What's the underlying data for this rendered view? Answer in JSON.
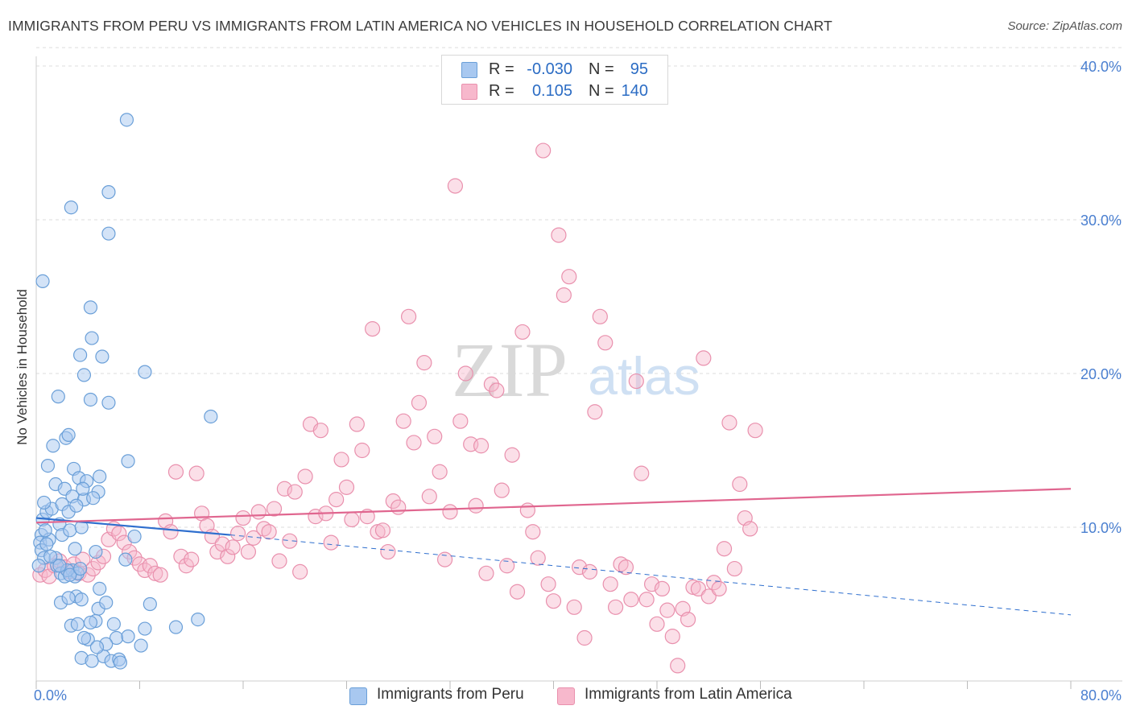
{
  "title": "IMMIGRANTS FROM PERU VS IMMIGRANTS FROM LATIN AMERICA NO VEHICLES IN HOUSEHOLD CORRELATION CHART",
  "source": "Source: ZipAtlas.com",
  "watermark": {
    "zip": "ZIP",
    "atlas": "atlas"
  },
  "colors": {
    "peru_fill": "#a8c8f0",
    "peru_stroke": "#6a9fd8",
    "peru_line": "#2f6fce",
    "latin_fill": "#f7b8cc",
    "latin_stroke": "#e990ad",
    "latin_line": "#e0668f",
    "tick_label": "#4a7fd0",
    "grid": "#dcdcdc"
  },
  "legend_top": {
    "rows": [
      {
        "r_label": "R =",
        "r_value": "-0.030",
        "n_label": "N =",
        "n_value": "95"
      },
      {
        "r_label": "R =",
        "r_value": "0.105",
        "n_label": "N =",
        "n_value": "140"
      }
    ]
  },
  "legend_bottom": {
    "items": [
      "Immigrants from Peru",
      "Immigrants from Latin America"
    ]
  },
  "chart_data": {
    "type": "scatter",
    "title": "IMMIGRANTS FROM PERU VS IMMIGRANTS FROM LATIN AMERICA NO VEHICLES IN HOUSEHOLD CORRELATION CHART",
    "xlabel": "",
    "ylabel": "No Vehicles in Household",
    "xlim": [
      0,
      80
    ],
    "ylim": [
      0,
      42
    ],
    "x_tick_labels": [
      "0.0%",
      "80.0%"
    ],
    "y_ticks": [
      10,
      20,
      30,
      40
    ],
    "y_tick_labels": [
      "10.0%",
      "20.0%",
      "30.0%",
      "40.0%"
    ],
    "grid": true,
    "legend_position": "bottom",
    "series": [
      {
        "name": "Immigrants from Peru",
        "r": -0.03,
        "n": 95,
        "trend": {
          "x": [
            0,
            15
          ],
          "y": [
            10.6,
            9.5
          ],
          "dashed_to": [
            80,
            4.3
          ]
        },
        "points": [
          [
            0.5,
            26.0
          ],
          [
            0.4,
            9.5
          ],
          [
            0.3,
            9.0
          ],
          [
            0.4,
            8.5
          ],
          [
            0.6,
            8.0
          ],
          [
            0.2,
            7.5
          ],
          [
            0.5,
            10.5
          ],
          [
            0.8,
            11.0
          ],
          [
            1.0,
            9.2
          ],
          [
            0.7,
            9.8
          ],
          [
            1.2,
            11.2
          ],
          [
            1.5,
            12.8
          ],
          [
            0.9,
            14.0
          ],
          [
            1.3,
            15.3
          ],
          [
            1.7,
            18.5
          ],
          [
            2.7,
            30.8
          ],
          [
            2.3,
            15.8
          ],
          [
            2.5,
            16.0
          ],
          [
            2.2,
            12.5
          ],
          [
            2.0,
            11.5
          ],
          [
            2.5,
            11.0
          ],
          [
            1.8,
            10.2
          ],
          [
            2.0,
            9.5
          ],
          [
            2.6,
            9.8
          ],
          [
            1.5,
            8.0
          ],
          [
            1.6,
            7.5
          ],
          [
            1.9,
            7.0
          ],
          [
            2.2,
            6.8
          ],
          [
            2.8,
            7.2
          ],
          [
            3.0,
            6.8
          ],
          [
            3.2,
            7.0
          ],
          [
            2.4,
            7.2
          ],
          [
            1.8,
            7.5
          ],
          [
            2.6,
            6.9
          ],
          [
            3.4,
            7.3
          ],
          [
            3.0,
            8.6
          ],
          [
            3.5,
            10.0
          ],
          [
            2.8,
            12.0
          ],
          [
            2.9,
            13.8
          ],
          [
            3.3,
            13.2
          ],
          [
            3.9,
            13.0
          ],
          [
            3.7,
            11.8
          ],
          [
            3.6,
            12.5
          ],
          [
            3.1,
            11.4
          ],
          [
            3.4,
            21.2
          ],
          [
            3.7,
            19.9
          ],
          [
            4.2,
            24.3
          ],
          [
            4.3,
            22.3
          ],
          [
            4.2,
            18.3
          ],
          [
            5.1,
            21.1
          ],
          [
            5.6,
            31.8
          ],
          [
            5.6,
            29.1
          ],
          [
            7.0,
            36.5
          ],
          [
            5.6,
            18.1
          ],
          [
            4.9,
            13.3
          ],
          [
            4.8,
            12.3
          ],
          [
            4.4,
            11.9
          ],
          [
            4.6,
            8.4
          ],
          [
            4.8,
            4.7
          ],
          [
            4.9,
            6.0
          ],
          [
            5.4,
            5.1
          ],
          [
            5.2,
            1.6
          ],
          [
            3.5,
            1.5
          ],
          [
            4.3,
            1.3
          ],
          [
            6.0,
            3.7
          ],
          [
            6.2,
            2.8
          ],
          [
            5.4,
            2.4
          ],
          [
            4.6,
            3.9
          ],
          [
            4.2,
            3.8
          ],
          [
            3.1,
            5.5
          ],
          [
            3.5,
            5.3
          ],
          [
            2.7,
            3.6
          ],
          [
            3.2,
            3.7
          ],
          [
            1.9,
            5.1
          ],
          [
            2.5,
            5.4
          ],
          [
            4.0,
            2.7
          ],
          [
            3.7,
            2.8
          ],
          [
            4.7,
            2.2
          ],
          [
            5.8,
            1.3
          ],
          [
            6.4,
            1.4
          ],
          [
            6.5,
            1.2
          ],
          [
            7.1,
            2.9
          ],
          [
            8.1,
            2.3
          ],
          [
            8.4,
            3.4
          ],
          [
            8.8,
            5.0
          ],
          [
            7.6,
            9.4
          ],
          [
            6.9,
            7.9
          ],
          [
            7.1,
            14.3
          ],
          [
            8.4,
            20.1
          ],
          [
            10.8,
            3.5
          ],
          [
            12.5,
            4.0
          ],
          [
            13.5,
            17.2
          ],
          [
            0.8,
            8.9
          ],
          [
            1.1,
            8.1
          ],
          [
            0.6,
            11.6
          ]
        ]
      },
      {
        "name": "Immigrants from Latin America",
        "r": 0.105,
        "n": 140,
        "trend": {
          "x": [
            0,
            80
          ],
          "y": [
            10.3,
            12.5
          ]
        },
        "points": [
          [
            0.3,
            6.9
          ],
          [
            0.7,
            7.2
          ],
          [
            1.0,
            6.8
          ],
          [
            1.4,
            7.5
          ],
          [
            1.8,
            7.8
          ],
          [
            2.2,
            7.4
          ],
          [
            2.6,
            7.1
          ],
          [
            2.9,
            7.6
          ],
          [
            3.3,
            7.0
          ],
          [
            3.6,
            7.9
          ],
          [
            4.0,
            6.9
          ],
          [
            4.4,
            7.3
          ],
          [
            4.8,
            7.7
          ],
          [
            5.2,
            8.1
          ],
          [
            5.6,
            9.2
          ],
          [
            6.0,
            9.9
          ],
          [
            6.4,
            9.6
          ],
          [
            6.8,
            9.0
          ],
          [
            7.2,
            8.4
          ],
          [
            7.6,
            8.0
          ],
          [
            8.0,
            7.6
          ],
          [
            8.4,
            7.2
          ],
          [
            8.8,
            7.5
          ],
          [
            9.2,
            7.0
          ],
          [
            9.6,
            6.9
          ],
          [
            10.0,
            10.4
          ],
          [
            10.4,
            9.7
          ],
          [
            10.8,
            13.6
          ],
          [
            11.2,
            8.1
          ],
          [
            11.6,
            7.5
          ],
          [
            12.0,
            7.9
          ],
          [
            12.4,
            13.5
          ],
          [
            12.8,
            10.9
          ],
          [
            13.2,
            10.1
          ],
          [
            13.6,
            9.4
          ],
          [
            14.0,
            8.4
          ],
          [
            14.4,
            8.9
          ],
          [
            14.8,
            8.1
          ],
          [
            15.2,
            8.7
          ],
          [
            15.6,
            9.6
          ],
          [
            16.0,
            10.6
          ],
          [
            16.4,
            8.4
          ],
          [
            16.8,
            9.3
          ],
          [
            17.2,
            11.0
          ],
          [
            17.6,
            9.9
          ],
          [
            18.0,
            9.7
          ],
          [
            18.4,
            11.2
          ],
          [
            18.8,
            7.8
          ],
          [
            19.2,
            12.5
          ],
          [
            19.6,
            9.1
          ],
          [
            20.0,
            12.3
          ],
          [
            20.4,
            7.1
          ],
          [
            20.8,
            13.3
          ],
          [
            21.2,
            16.7
          ],
          [
            21.6,
            10.7
          ],
          [
            22.0,
            16.3
          ],
          [
            22.4,
            10.9
          ],
          [
            22.8,
            9.0
          ],
          [
            23.2,
            11.8
          ],
          [
            23.6,
            14.4
          ],
          [
            24.0,
            12.6
          ],
          [
            24.4,
            10.5
          ],
          [
            24.8,
            16.7
          ],
          [
            25.2,
            15.0
          ],
          [
            25.6,
            10.7
          ],
          [
            26.0,
            22.9
          ],
          [
            26.4,
            9.7
          ],
          [
            26.8,
            9.8
          ],
          [
            27.2,
            8.4
          ],
          [
            27.6,
            11.7
          ],
          [
            28.0,
            11.3
          ],
          [
            28.4,
            16.9
          ],
          [
            28.8,
            23.7
          ],
          [
            29.2,
            15.5
          ],
          [
            29.6,
            18.1
          ],
          [
            30.0,
            20.7
          ],
          [
            30.4,
            12.0
          ],
          [
            30.8,
            15.9
          ],
          [
            31.2,
            13.6
          ],
          [
            31.6,
            7.9
          ],
          [
            32.0,
            11.0
          ],
          [
            32.4,
            32.2
          ],
          [
            32.8,
            16.9
          ],
          [
            33.2,
            20.0
          ],
          [
            33.6,
            15.4
          ],
          [
            34.0,
            11.4
          ],
          [
            34.4,
            15.3
          ],
          [
            34.8,
            7.0
          ],
          [
            35.2,
            19.3
          ],
          [
            35.6,
            18.9
          ],
          [
            36.0,
            12.4
          ],
          [
            36.4,
            7.5
          ],
          [
            36.8,
            14.7
          ],
          [
            37.2,
            5.8
          ],
          [
            37.6,
            22.7
          ],
          [
            38.0,
            11.1
          ],
          [
            38.4,
            9.7
          ],
          [
            38.8,
            8.0
          ],
          [
            39.2,
            34.5
          ],
          [
            39.6,
            6.3
          ],
          [
            40.0,
            5.2
          ],
          [
            40.4,
            29.0
          ],
          [
            40.8,
            25.1
          ],
          [
            41.2,
            26.3
          ],
          [
            41.6,
            4.8
          ],
          [
            42.0,
            7.4
          ],
          [
            42.4,
            2.8
          ],
          [
            42.8,
            7.1
          ],
          [
            43.2,
            17.5
          ],
          [
            43.6,
            23.7
          ],
          [
            44.0,
            22.0
          ],
          [
            44.4,
            6.3
          ],
          [
            44.8,
            4.8
          ],
          [
            45.2,
            7.6
          ],
          [
            45.6,
            7.4
          ],
          [
            46.0,
            5.3
          ],
          [
            46.4,
            19.5
          ],
          [
            46.8,
            13.5
          ],
          [
            47.2,
            5.3
          ],
          [
            47.6,
            6.3
          ],
          [
            48.0,
            3.7
          ],
          [
            48.4,
            6.0
          ],
          [
            48.8,
            4.6
          ],
          [
            49.2,
            2.9
          ],
          [
            49.6,
            1.0
          ],
          [
            50.0,
            4.7
          ],
          [
            50.4,
            4.0
          ],
          [
            50.8,
            6.1
          ],
          [
            51.2,
            6.0
          ],
          [
            51.6,
            21.0
          ],
          [
            52.0,
            5.5
          ],
          [
            52.4,
            6.4
          ],
          [
            52.8,
            6.0
          ],
          [
            53.2,
            8.6
          ],
          [
            53.6,
            16.8
          ],
          [
            54.0,
            7.3
          ],
          [
            54.4,
            12.8
          ],
          [
            54.8,
            10.6
          ],
          [
            55.2,
            9.9
          ],
          [
            55.6,
            16.3
          ]
        ]
      }
    ]
  }
}
